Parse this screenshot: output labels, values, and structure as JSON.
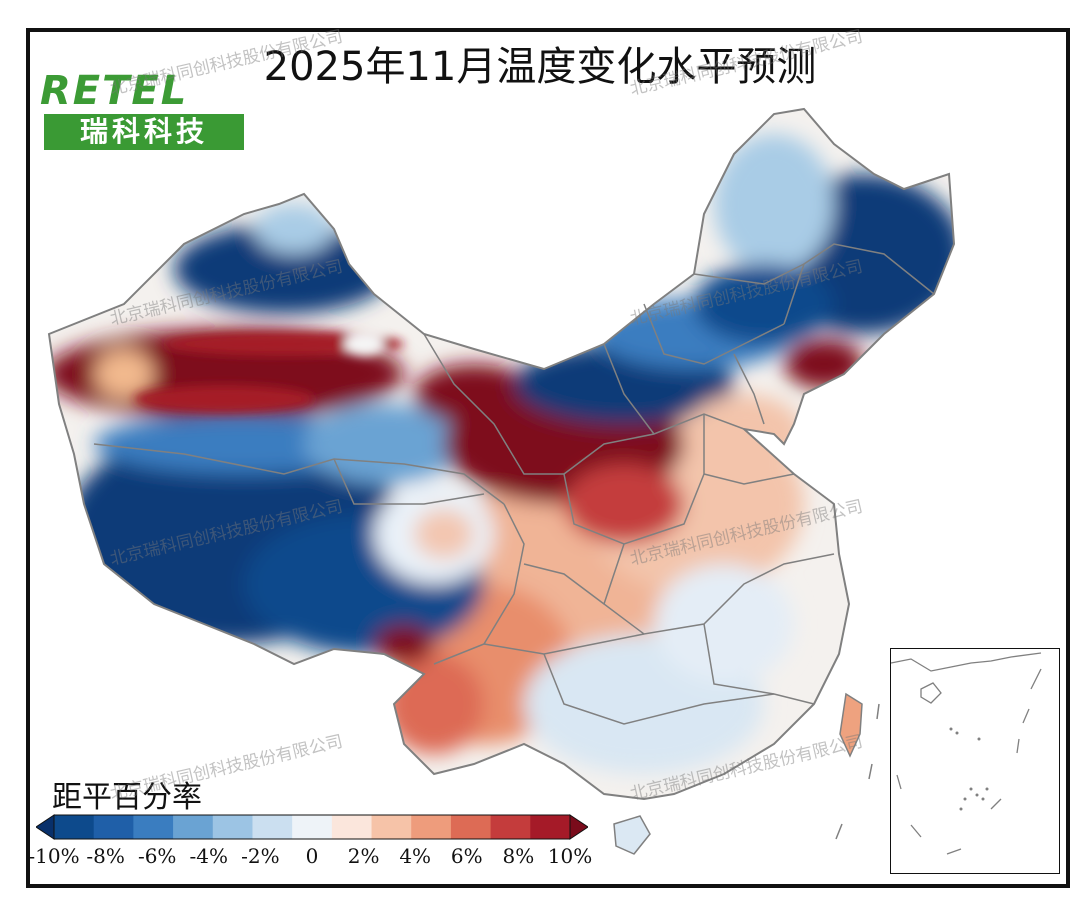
{
  "title": "2025年11月温度变化水平预测",
  "logo": {
    "english": "RETEL",
    "chinese": "瑞科科技"
  },
  "watermark_text": "北京瑞科同创科技股份有限公司",
  "legend": {
    "title": "距平百分率",
    "tick_labels": [
      "-10%",
      "-8%",
      "-6%",
      "-4%",
      "-2%",
      "0",
      "2%",
      "4%",
      "6%",
      "8%",
      "10%"
    ],
    "colors": [
      "#08306b",
      "#0d4a8c",
      "#1f5fa8",
      "#3a7dc0",
      "#6aa3d3",
      "#9cc4e4",
      "#cbdff0",
      "#eef3f8",
      "#fbe6dc",
      "#f6c3a8",
      "#ee9c7c",
      "#dd6b55",
      "#c43c3c",
      "#a51a28",
      "#7a0b1b"
    ]
  },
  "map": {
    "colors": {
      "strong_cold": "#0b3a78",
      "cold": "#3a7dc0",
      "mild_cold": "#a9cce6",
      "light_cold": "#dbe9f4",
      "neutral": "#f4f1ee",
      "light_warm": "#f7d6c3",
      "warm": "#ec9f80",
      "strong_warm": "#7e0d1e",
      "border": "#808080"
    }
  }
}
